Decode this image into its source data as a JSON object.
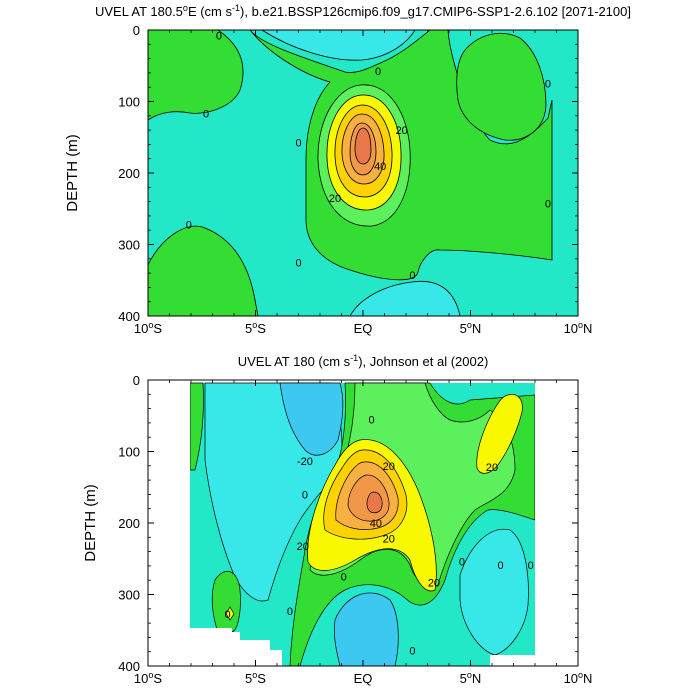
{
  "colors": {
    "cyan": "#38e8e8",
    "aqua": "#22e8c8",
    "green_light": "#5cf05c",
    "green": "#33dd33",
    "yellow": "#f8f800",
    "yellow_orange": "#fcd200",
    "orange_light": "#f8b040",
    "orange": "#f09848",
    "orange_deep": "#e8784a",
    "line": "#000000"
  },
  "chart_data": [
    {
      "type": "contour",
      "title_parts": [
        "UVEL AT 180.5",
        "o",
        "E (cm s",
        "-1",
        "), b.e21.BSSP126cmip6.f09_g17.CMIP6-SSP1-2.6.102 [2071-2100]"
      ],
      "ylabel": "DEPTH (m)",
      "xlim": [
        -10,
        10
      ],
      "ylim": [
        400,
        0
      ],
      "xticks": [
        {
          "v": -10,
          "num": "10",
          "deg": "o",
          "hem": "S"
        },
        {
          "v": -5,
          "num": "5",
          "deg": "o",
          "hem": "S"
        },
        {
          "v": 0,
          "num": "EQ",
          "deg": "",
          "hem": ""
        },
        {
          "v": 5,
          "num": "5",
          "deg": "o",
          "hem": "N"
        },
        {
          "v": 10,
          "num": "10",
          "deg": "o",
          "hem": "N"
        }
      ],
      "yticks": [
        0,
        100,
        200,
        300,
        400
      ],
      "contour_labels": [
        {
          "x": -6.7,
          "y": 8,
          "text": "0"
        },
        {
          "x": -7.3,
          "y": 117,
          "text": "0"
        },
        {
          "x": 0.7,
          "y": 57,
          "text": "0"
        },
        {
          "x": -3.0,
          "y": 157,
          "text": "0"
        },
        {
          "x": -3.0,
          "y": 325,
          "text": "0"
        },
        {
          "x": 2.3,
          "y": 343,
          "text": "0"
        },
        {
          "x": -8.1,
          "y": 272,
          "text": "0"
        },
        {
          "x": 8.6,
          "y": 75,
          "text": "0"
        },
        {
          "x": 8.6,
          "y": 243,
          "text": "0"
        },
        {
          "x": 1.8,
          "y": 140,
          "text": "20"
        },
        {
          "x": -1.3,
          "y": 235,
          "text": "20"
        },
        {
          "x": 0.8,
          "y": 190,
          "text": "40"
        }
      ]
    },
    {
      "type": "contour",
      "title_parts": [
        "UVEL AT 180 (cm s",
        "-1",
        "), Johnson et al (2002)"
      ],
      "ylabel": "DEPTH (m)",
      "xlim": [
        -10,
        10
      ],
      "ylim": [
        400,
        0
      ],
      "xticks": [
        {
          "v": -10,
          "num": "10",
          "deg": "o",
          "hem": "S"
        },
        {
          "v": -5,
          "num": "5",
          "deg": "o",
          "hem": "S"
        },
        {
          "v": 0,
          "num": "EQ",
          "deg": "",
          "hem": ""
        },
        {
          "v": 5,
          "num": "5",
          "deg": "o",
          "hem": "N"
        },
        {
          "v": 10,
          "num": "10",
          "deg": "o",
          "hem": "N"
        }
      ],
      "yticks": [
        0,
        100,
        200,
        300,
        400
      ],
      "contour_labels": [
        {
          "x": -2.7,
          "y": 113,
          "text": "-20"
        },
        {
          "x": -2.7,
          "y": 160,
          "text": "0"
        },
        {
          "x": -2.8,
          "y": 232,
          "text": "20"
        },
        {
          "x": 0.4,
          "y": 55,
          "text": "0"
        },
        {
          "x": 1.2,
          "y": 120,
          "text": "20"
        },
        {
          "x": 0.6,
          "y": 200,
          "text": "40"
        },
        {
          "x": 1.2,
          "y": 222,
          "text": "20"
        },
        {
          "x": 3.3,
          "y": 283,
          "text": "20"
        },
        {
          "x": 6.0,
          "y": 122,
          "text": "20"
        },
        {
          "x": -0.9,
          "y": 275,
          "text": "0"
        },
        {
          "x": -3.4,
          "y": 323,
          "text": "0"
        },
        {
          "x": 4.6,
          "y": 254,
          "text": "0"
        },
        {
          "x": 6.4,
          "y": 259,
          "text": "0"
        },
        {
          "x": 7.8,
          "y": 259,
          "text": "0"
        },
        {
          "x": 2.3,
          "y": 378,
          "text": "0"
        },
        {
          "x": -6.3,
          "y": 327,
          "text": "0"
        }
      ]
    }
  ]
}
